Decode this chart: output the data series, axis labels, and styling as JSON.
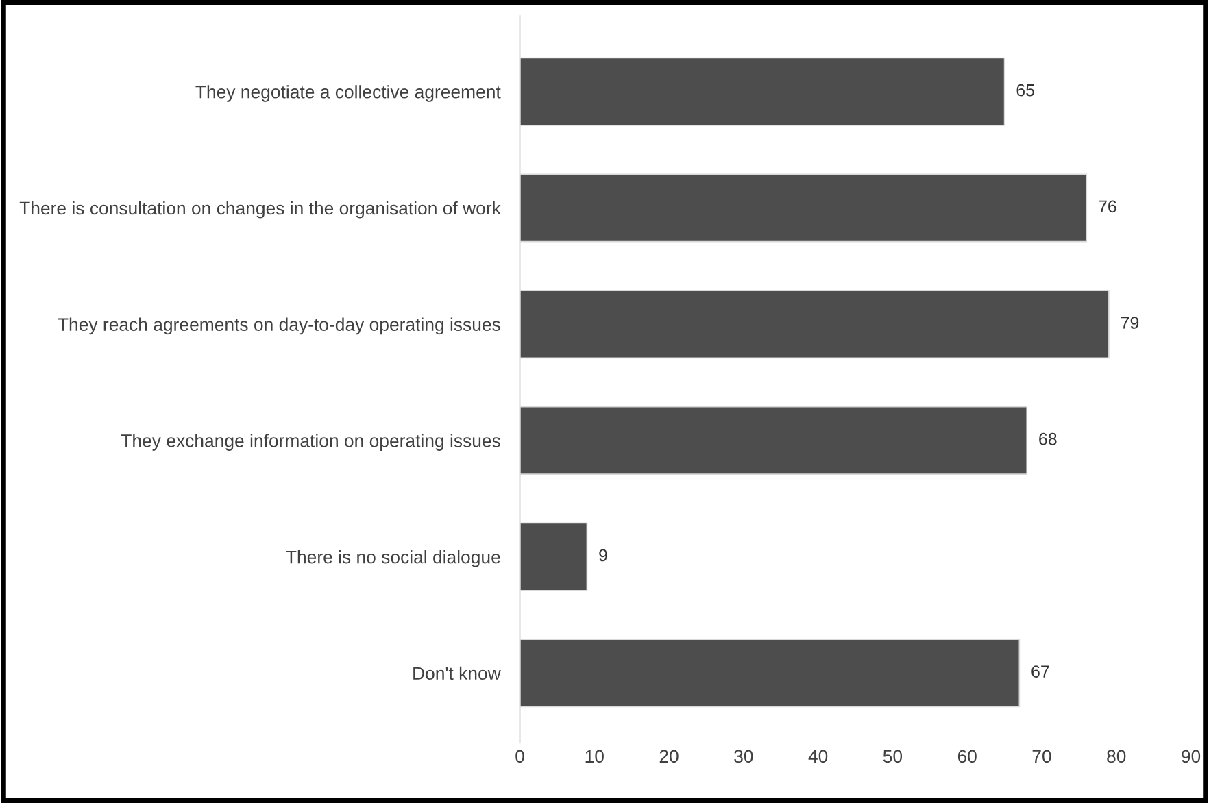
{
  "chart_data": {
    "type": "bar",
    "orientation": "horizontal",
    "categories": [
      "They negotiate a collective agreement",
      "There is consultation on changes in the organisation of work",
      "They reach agreements on day-to-day operating issues",
      "They exchange information on operating issues",
      "There is no social dialogue",
      "Don't know"
    ],
    "values": [
      65,
      76,
      79,
      68,
      9,
      67
    ],
    "color": "#4d4d4d",
    "xlim": [
      0,
      90
    ],
    "xticks": [
      0,
      10,
      20,
      30,
      40,
      50,
      60,
      70,
      80,
      90
    ],
    "data_labels": true,
    "grid": false,
    "legend": false
  }
}
